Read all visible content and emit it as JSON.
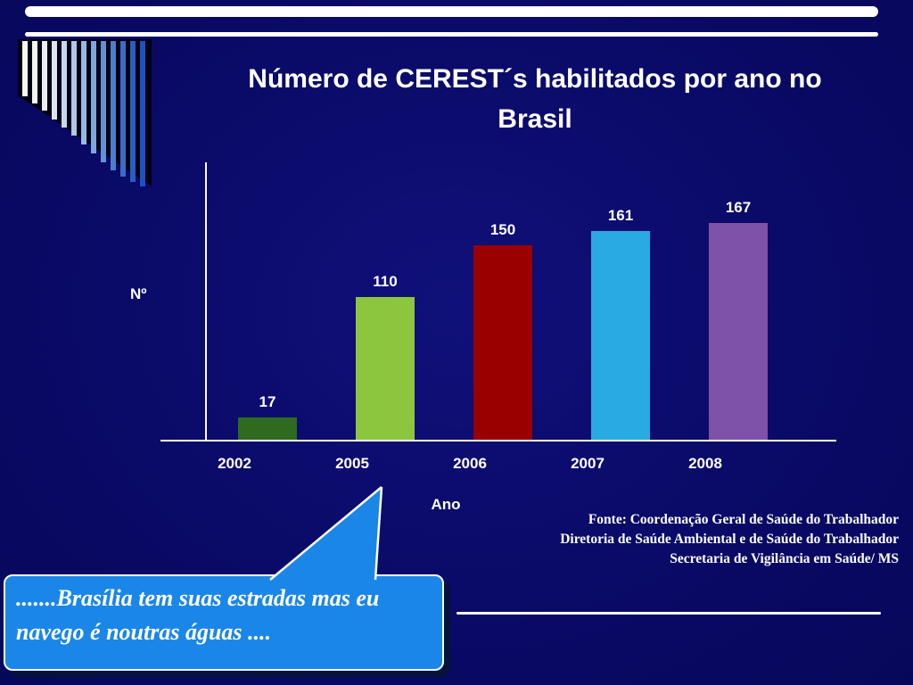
{
  "slide": {
    "title_line1": "Número de CEREST´s  habilitados por ano  no",
    "title_line2": "Brasil",
    "y_axis_label": "Nº",
    "x_axis_label": "Ano",
    "source_lines": [
      "Fonte: Coordenação Geral de Saúde do Trabalhador",
      "Diretoria de Saúde Ambiental e de Saúde do Trabalhador",
      "Secretaria de Vigilância em Saúde/ MS"
    ],
    "callout_line1": " .......Brasília tem suas estradas mas eu",
    "callout_line2": "navego é noutras águas ....",
    "colors": {
      "background": "#0a0a68",
      "callout_fill": "#1a86e8",
      "axis": "#ffffff"
    }
  },
  "chart_data": {
    "type": "bar",
    "title": "Número de CEREST´s habilitados por ano no Brasil",
    "categories": [
      "2002",
      "2005",
      "2006",
      "2007",
      "2008"
    ],
    "values": [
      17,
      110,
      150,
      161,
      167
    ],
    "colors": [
      "#2e6b1e",
      "#8cc63e",
      "#990000",
      "#29abe2",
      "#7d52a8"
    ],
    "xlabel": "Ano",
    "ylabel": "Nº",
    "ylim": [
      0,
      180
    ],
    "grid": false,
    "legend": false,
    "data_labels": true
  }
}
